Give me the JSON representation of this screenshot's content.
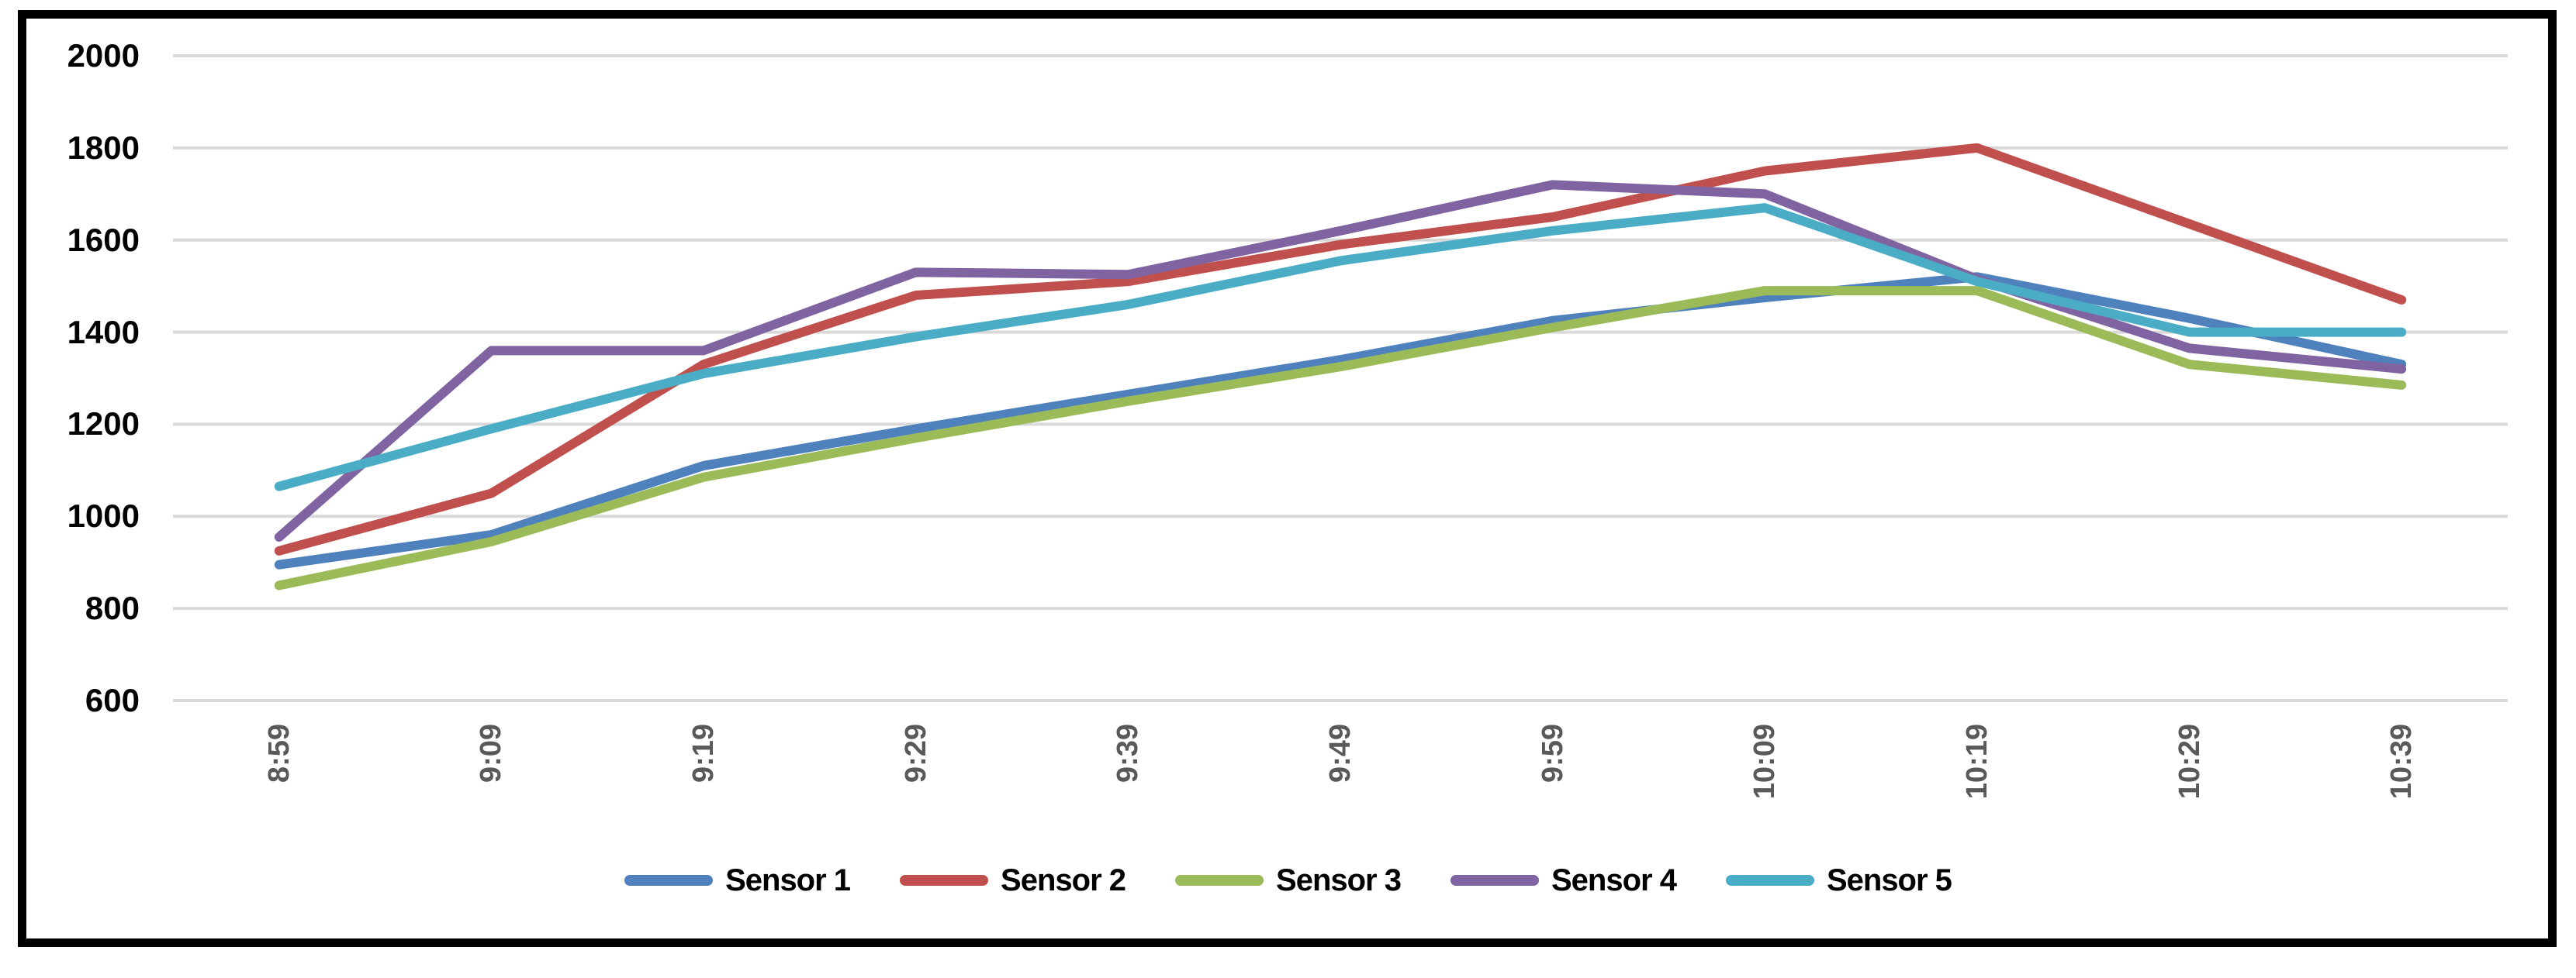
{
  "chart_data": {
    "type": "line",
    "title": "",
    "categories": [
      "8:59",
      "9:09",
      "9:19",
      "9:29",
      "9:39",
      "9:49",
      "9:59",
      "10:09",
      "10:19",
      "10:29",
      "10:39"
    ],
    "series": [
      {
        "name": "Sensor 1",
        "color": "#4F81BD",
        "values": [
          895,
          960,
          1110,
          1190,
          1265,
          1340,
          1425,
          1475,
          1520,
          1430,
          1330
        ]
      },
      {
        "name": "Sensor 2",
        "color": "#C0504D",
        "values": [
          925,
          1050,
          1330,
          1480,
          1510,
          1590,
          1650,
          1750,
          1800,
          1635,
          1470
        ]
      },
      {
        "name": "Sensor 3",
        "color": "#9BBB59",
        "values": [
          850,
          945,
          1085,
          1170,
          1250,
          1325,
          1410,
          1490,
          1490,
          1330,
          1285
        ]
      },
      {
        "name": "Sensor 4",
        "color": "#8064A2",
        "values": [
          955,
          1360,
          1360,
          1530,
          1525,
          1620,
          1720,
          1700,
          1515,
          1365,
          1320
        ]
      },
      {
        "name": "Sensor 5",
        "color": "#4BACC6",
        "values": [
          1065,
          1190,
          1310,
          1390,
          1460,
          1555,
          1620,
          1670,
          1510,
          1400,
          1400
        ]
      }
    ],
    "ylim": [
      600,
      2000
    ],
    "ytick_interval": 200,
    "yticks_top_to_bottom": [
      "2000",
      "1800",
      "1600",
      "1400",
      "1200",
      "1000",
      "800",
      "600"
    ],
    "grid": "horizontal",
    "legend_position": "bottom-center",
    "x_tick_rotation_deg": -90
  },
  "style_colors": {
    "gridline": "#D9D9D9",
    "y_tick_label": "#000000",
    "x_tick_label": "#595959",
    "frame_border": "#000000",
    "background": "#FFFFFF"
  }
}
